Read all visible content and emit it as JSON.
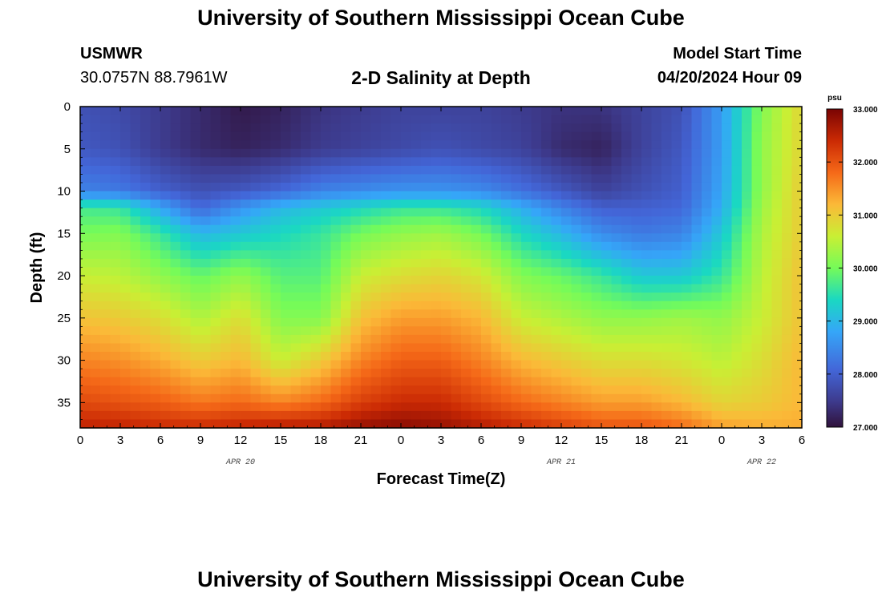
{
  "header": {
    "title": "University of Southern Mississippi Ocean Cube",
    "station": "USMWR",
    "coords": "30.0757N  88.7961W",
    "subtitle": "2-D Salinity at Depth",
    "model_label": "Model Start Time",
    "model_time": "04/20/2024 Hour 09"
  },
  "footer": {
    "title": "University of Southern Mississippi Ocean Cube"
  },
  "chart_data": {
    "type": "heatmap",
    "title": "2-D Salinity at Depth",
    "xlabel": "Forecast Time(Z)",
    "ylabel": "Depth (ft)",
    "x_tick_labels": [
      "0",
      "3",
      "6",
      "9",
      "12",
      "15",
      "18",
      "21",
      "0",
      "3",
      "6",
      "9",
      "12",
      "15",
      "18",
      "21",
      "0",
      "3",
      "6"
    ],
    "x_range_hours": [
      0,
      54
    ],
    "date_labels": [
      {
        "text": "APR 20",
        "hour": 12
      },
      {
        "text": "APR 21",
        "hour": 36
      },
      {
        "text": "APR 22",
        "hour": 51
      }
    ],
    "y_ticks": [
      0,
      5,
      10,
      15,
      20,
      25,
      30,
      35
    ],
    "y_range": [
      0,
      38
    ],
    "y_inverted": true,
    "colorbar": {
      "unit": "psu",
      "min": 27,
      "max": 33,
      "tick_labels": [
        "27.000",
        "28.000",
        "29.000",
        "30.000",
        "31.000",
        "32.000",
        "33.000"
      ]
    },
    "depth_profiles_ft": [
      0,
      5,
      10,
      12,
      15,
      20,
      25,
      30,
      35,
      38
    ],
    "salinity_profiles": [
      {
        "hour": 0,
        "values": [
          27.8,
          27.9,
          28.4,
          29.7,
          30.0,
          30.6,
          31.1,
          31.6,
          32.1,
          32.5
        ]
      },
      {
        "hour": 3,
        "values": [
          27.7,
          27.8,
          28.3,
          29.6,
          30.1,
          30.5,
          31.0,
          31.5,
          32.0,
          32.5
        ]
      },
      {
        "hour": 6,
        "values": [
          27.5,
          27.5,
          28.0,
          28.8,
          29.6,
          30.2,
          30.8,
          31.3,
          31.9,
          32.4
        ]
      },
      {
        "hour": 9,
        "values": [
          27.3,
          27.3,
          27.8,
          28.1,
          29.0,
          29.9,
          30.4,
          31.0,
          31.7,
          32.4
        ]
      },
      {
        "hour": 12,
        "values": [
          27.1,
          27.2,
          27.9,
          28.6,
          29.2,
          30.2,
          30.8,
          31.2,
          31.8,
          32.5
        ]
      },
      {
        "hour": 15,
        "values": [
          27.2,
          27.3,
          28.1,
          29.0,
          29.4,
          29.8,
          30.1,
          30.6,
          31.6,
          32.6
        ]
      },
      {
        "hour": 18,
        "values": [
          27.4,
          27.5,
          28.4,
          29.2,
          29.6,
          29.8,
          30.1,
          31.0,
          31.8,
          32.6
        ]
      },
      {
        "hour": 21,
        "values": [
          27.5,
          27.6,
          28.5,
          29.4,
          30.0,
          30.6,
          31.1,
          31.6,
          32.2,
          32.8
        ]
      },
      {
        "hour": 24,
        "values": [
          27.6,
          27.7,
          28.6,
          29.6,
          30.2,
          30.8,
          31.4,
          31.9,
          32.4,
          32.9
        ]
      },
      {
        "hour": 27,
        "values": [
          27.6,
          27.8,
          28.6,
          29.6,
          30.3,
          30.9,
          31.4,
          31.9,
          32.4,
          32.8
        ]
      },
      {
        "hour": 30,
        "values": [
          27.6,
          27.7,
          28.5,
          29.4,
          30.0,
          30.7,
          31.2,
          31.6,
          32.1,
          32.6
        ]
      },
      {
        "hour": 33,
        "values": [
          27.5,
          27.6,
          28.2,
          28.9,
          29.4,
          30.1,
          30.6,
          31.2,
          31.8,
          32.4
        ]
      },
      {
        "hour": 36,
        "values": [
          27.4,
          27.3,
          27.9,
          28.4,
          29.0,
          29.9,
          30.4,
          31.0,
          31.6,
          32.2
        ]
      },
      {
        "hour": 39,
        "values": [
          27.4,
          27.2,
          27.6,
          28.0,
          28.5,
          29.6,
          30.2,
          30.8,
          31.4,
          32.0
        ]
      },
      {
        "hour": 42,
        "values": [
          27.6,
          27.6,
          27.8,
          28.0,
          28.3,
          29.2,
          30.2,
          30.8,
          31.4,
          32.0
        ]
      },
      {
        "hour": 45,
        "values": [
          27.8,
          27.9,
          28.0,
          28.1,
          28.4,
          29.2,
          30.3,
          30.7,
          31.2,
          31.8
        ]
      },
      {
        "hour": 48,
        "values": [
          28.7,
          28.7,
          28.8,
          28.9,
          29.2,
          29.6,
          30.2,
          30.5,
          30.9,
          31.4
        ]
      },
      {
        "hour": 51,
        "values": [
          30.1,
          30.2,
          30.2,
          30.3,
          30.4,
          30.5,
          30.6,
          30.8,
          31.0,
          31.3
        ]
      },
      {
        "hour": 54,
        "values": [
          30.9,
          30.9,
          31.0,
          31.0,
          31.0,
          31.1,
          31.1,
          31.2,
          31.2,
          31.3
        ]
      }
    ]
  }
}
